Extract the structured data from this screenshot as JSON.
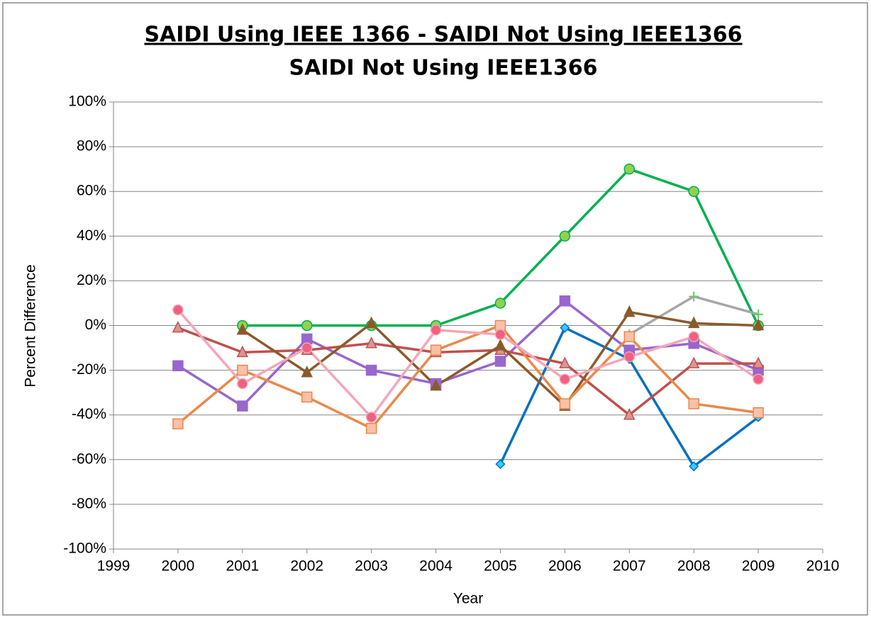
{
  "chart_data": {
    "type": "line",
    "title": "SAIDI Using IEEE 1366 - SAIDI Not Using IEEE1366",
    "subtitle": "SAIDI Not Using IEEE1366",
    "x_label": "Year",
    "y_label": "Percent Difference",
    "x": [
      2000,
      2001,
      2002,
      2003,
      2004,
      2005,
      2006,
      2007,
      2008,
      2009
    ],
    "xlim": [
      1999,
      2010
    ],
    "xticks": [
      1999,
      2000,
      2001,
      2002,
      2003,
      2004,
      2005,
      2006,
      2007,
      2008,
      2009,
      2010
    ],
    "ylim": [
      -100,
      100
    ],
    "yticks": [
      {
        "value": -100,
        "label": "-100%"
      },
      {
        "value": -80,
        "label": "-80%"
      },
      {
        "value": -60,
        "label": "-60%"
      },
      {
        "value": -40,
        "label": "-40%"
      },
      {
        "value": -20,
        "label": "-20%"
      },
      {
        "value": 0,
        "label": "0%"
      },
      {
        "value": 20,
        "label": "20%"
      },
      {
        "value": 40,
        "label": "40%"
      },
      {
        "value": 60,
        "label": "60%"
      },
      {
        "value": 80,
        "label": "80%"
      },
      {
        "value": 100,
        "label": "100%"
      }
    ],
    "grid": true,
    "series": [
      {
        "color": "#0070c0",
        "marker": "diamond",
        "marker_color": "#33ccff",
        "values": [
          null,
          null,
          null,
          null,
          null,
          -62,
          -1,
          -15,
          -63,
          -41
        ]
      },
      {
        "color": "#00b050",
        "marker": "circle",
        "marker_color": "#92d050",
        "values": [
          null,
          0,
          0,
          0,
          0,
          10,
          40,
          70,
          60,
          0
        ]
      },
      {
        "color": "#a6a6a6",
        "marker": "plus",
        "marker_color": "#66cc66",
        "values": [
          null,
          null,
          null,
          null,
          null,
          null,
          null,
          -4,
          13,
          5
        ]
      },
      {
        "color": "#9966cc",
        "marker": "square",
        "marker_color": "#9966cc",
        "values": [
          -18,
          -36,
          -6,
          -20,
          -26,
          -16,
          11,
          -11,
          -8,
          -20
        ]
      },
      {
        "color": "#c0504d",
        "marker": "triangle",
        "marker_color": "#d99694",
        "values": [
          -1,
          -12,
          -11,
          -8,
          -12,
          -11,
          -17,
          -40,
          -17,
          -17
        ]
      },
      {
        "color": "#8b5a2b",
        "marker": "triangle",
        "marker_color": "#8b5a2b",
        "values": [
          null,
          -2,
          -21,
          1,
          -27,
          -9,
          -36,
          6,
          1,
          0
        ]
      },
      {
        "color": "#e8894a",
        "marker": "square",
        "marker_color": "#fac0a8",
        "values": [
          -44,
          -20,
          -32,
          -46,
          -11,
          0,
          -35,
          -5,
          -35,
          -39
        ]
      },
      {
        "color": "#f4a6b8",
        "marker": "circle",
        "marker_color": "#f06080",
        "values": [
          7,
          -26,
          -10,
          -41,
          -2,
          -4,
          -24,
          -14,
          -5,
          -24
        ]
      }
    ]
  }
}
